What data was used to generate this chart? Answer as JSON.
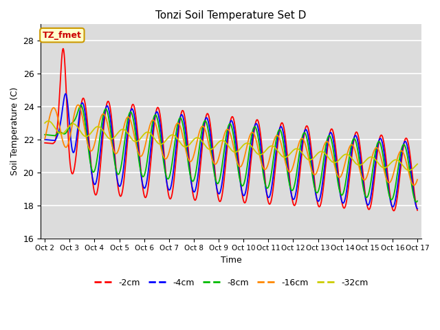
{
  "title": "Tonzi Soil Temperature Set D",
  "xlabel": "Time",
  "ylabel": "Soil Temperature (C)",
  "ylim": [
    16,
    29
  ],
  "bg_color": "#dcdcdc",
  "annotation_text": "TZ_fmet",
  "annotation_color": "#cc0000",
  "annotation_bg": "#ffffcc",
  "annotation_border": "#cc9900",
  "series": [
    {
      "label": "-2cm",
      "color": "#ff0000",
      "lw": 1.3
    },
    {
      "label": "-4cm",
      "color": "#0000ff",
      "lw": 1.3
    },
    {
      "label": "-8cm",
      "color": "#00bb00",
      "lw": 1.3
    },
    {
      "label": "-16cm",
      "color": "#ff8800",
      "lw": 1.3
    },
    {
      "label": "-32cm",
      "color": "#cccc00",
      "lw": 1.3
    }
  ],
  "xtick_labels": [
    "Oct 2",
    "Oct 3",
    "Oct 4",
    "Oct 5",
    "Oct 6",
    "Oct 7",
    "Oct 8",
    "Oct 9",
    "Oct 10",
    "Oct 11",
    "Oct 12",
    "Oct 13",
    "Oct 14",
    "Oct 15",
    "Oct 16",
    "Oct 17"
  ],
  "ytick_values": [
    16,
    18,
    20,
    22,
    24,
    26,
    28
  ]
}
